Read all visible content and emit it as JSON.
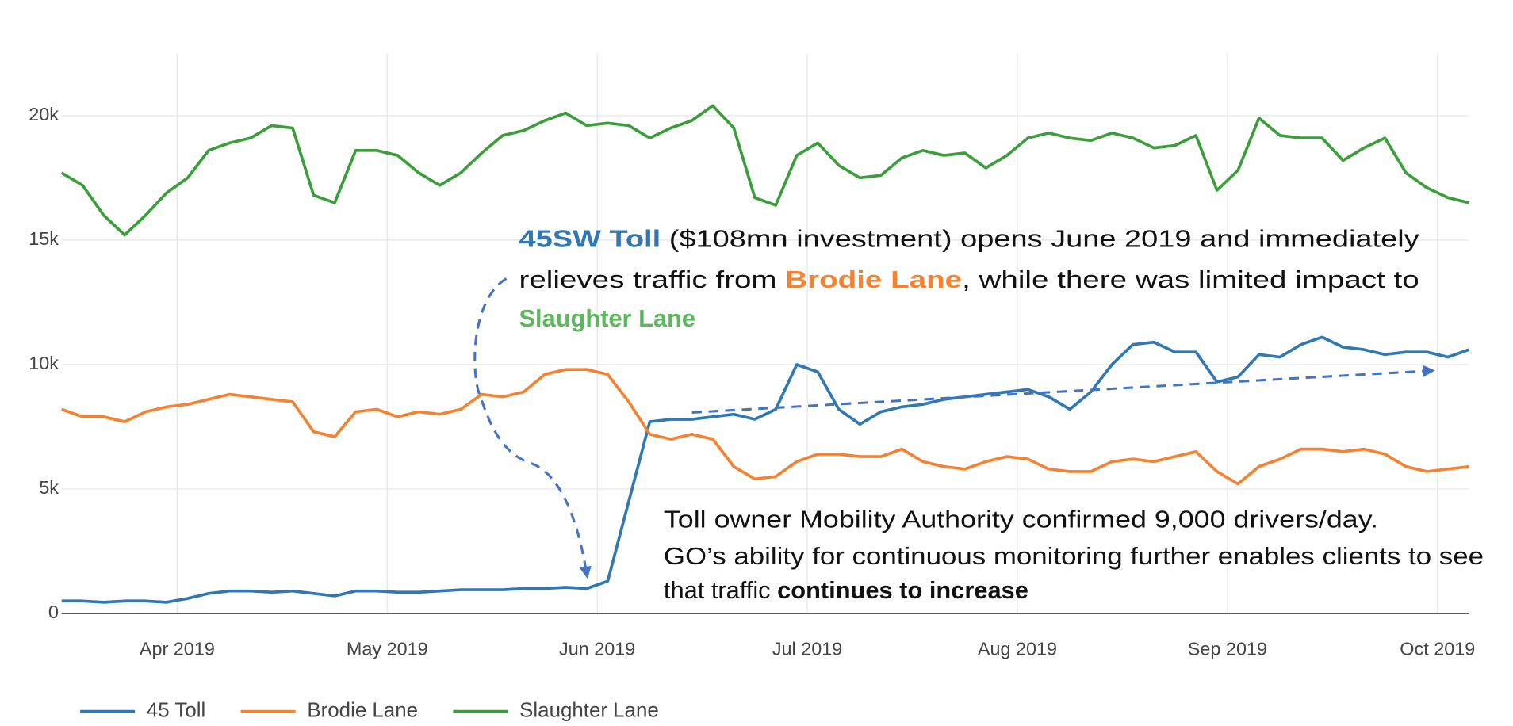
{
  "chart_data": {
    "type": "line",
    "x": [
      3.45,
      3.55,
      3.65,
      3.75,
      3.85,
      3.95,
      4.05,
      4.15,
      4.25,
      4.35,
      4.45,
      4.55,
      4.65,
      4.75,
      4.85,
      4.95,
      5.05,
      5.15,
      5.25,
      5.35,
      5.45,
      5.55,
      5.65,
      5.75,
      5.85,
      5.95,
      6.05,
      6.15,
      6.25,
      6.35,
      6.45,
      6.55,
      6.65,
      6.75,
      6.85,
      6.95,
      7.05,
      7.15,
      7.25,
      7.35,
      7.45,
      7.55,
      7.65,
      7.75,
      7.85,
      7.95,
      8.05,
      8.15,
      8.25,
      8.35,
      8.45,
      8.55,
      8.65,
      8.75,
      8.85,
      8.95,
      9.05,
      9.15,
      9.25,
      9.35,
      9.45,
      9.55,
      9.65,
      9.75,
      9.85,
      9.95,
      10.05,
      10.15
    ],
    "xlim": [
      3.45,
      10.15
    ],
    "xticks": [
      {
        "value": 4,
        "label": "Apr 2019"
      },
      {
        "value": 5,
        "label": "May 2019"
      },
      {
        "value": 6,
        "label": "Jun 2019"
      },
      {
        "value": 7,
        "label": "Jul 2019"
      },
      {
        "value": 8,
        "label": "Aug 2019"
      },
      {
        "value": 9,
        "label": "Sep 2019"
      },
      {
        "value": 10,
        "label": "Oct 2019"
      }
    ],
    "ylim": [
      0,
      22500
    ],
    "yticks": [
      0,
      {
        "value": 5000,
        "label": "5k"
      },
      {
        "value": 10000,
        "label": "10k"
      },
      {
        "value": 15000,
        "label": "15k"
      },
      {
        "value": 20000,
        "label": "20k"
      }
    ],
    "grid": true,
    "legend": "bottom-left",
    "series": [
      {
        "name": "45 Toll",
        "color": "#2f78b4",
        "values": [
          500,
          500,
          450,
          500,
          500,
          450,
          600,
          800,
          900,
          900,
          850,
          900,
          800,
          700,
          900,
          900,
          850,
          850,
          900,
          950,
          950,
          950,
          1000,
          1000,
          1050,
          1000,
          1300,
          4500,
          7700,
          7800,
          7800,
          7900,
          8000,
          7800,
          8200,
          10000,
          9700,
          8200,
          7600,
          8100,
          8300,
          8400,
          8600,
          8700,
          8800,
          8900,
          9000,
          8700,
          8200,
          8900,
          10000,
          10800,
          10900,
          10500,
          10500,
          9300,
          9500,
          10400,
          10300,
          10800,
          11100,
          10700,
          10600,
          10400,
          10500,
          10500,
          10300,
          10600
        ]
      },
      {
        "name": "Brodie Lane",
        "color": "#f58231",
        "values": [
          8200,
          7900,
          7900,
          7700,
          8100,
          8300,
          8400,
          8600,
          8800,
          8700,
          8600,
          8500,
          7300,
          7100,
          8100,
          8200,
          7900,
          8100,
          8000,
          8200,
          8800,
          8700,
          8900,
          9600,
          9800,
          9800,
          9600,
          8500,
          7200,
          7000,
          7200,
          7000,
          5900,
          5400,
          5500,
          6100,
          6400,
          6400,
          6300,
          6300,
          6600,
          6100,
          5900,
          5800,
          6100,
          6300,
          6200,
          5800,
          5700,
          5700,
          6100,
          6200,
          6100,
          6300,
          6500,
          5700,
          5200,
          5900,
          6200,
          6600,
          6600,
          6500,
          6600,
          6400,
          5900,
          5700,
          5800,
          5900
        ]
      },
      {
        "name": "Slaughter Lane",
        "color": "#3a9e3a",
        "values": [
          17700,
          17200,
          16000,
          15200,
          16000,
          16900,
          17500,
          18600,
          18900,
          19100,
          19600,
          19500,
          16800,
          16500,
          18600,
          18600,
          18400,
          17700,
          17200,
          17700,
          18500,
          19200,
          19400,
          19800,
          20100,
          19600,
          19700,
          19600,
          19100,
          19500,
          19800,
          20400,
          19500,
          16700,
          16400,
          18400,
          18900,
          18000,
          17500,
          17600,
          18300,
          18600,
          18400,
          18500,
          17900,
          18400,
          19100,
          19300,
          19100,
          19000,
          19300,
          19100,
          18700,
          18800,
          19200,
          17000,
          17800,
          19900,
          19200,
          19100,
          19100,
          18200,
          18700,
          19100,
          17700,
          17100,
          16700,
          16500
        ]
      }
    ],
    "annotations": [
      {
        "lines": [
          [
            {
              "text": "45SW Toll",
              "bold": true,
              "color": "#2f78b4"
            },
            {
              "text": " ($108mn investment) opens June 2019 and immediately"
            }
          ],
          [
            {
              "text": "relieves traffic from "
            },
            {
              "text": "Brodie Lane",
              "bold": true,
              "color": "#f58231"
            },
            {
              "text": ", while there was limited impact to"
            }
          ],
          [
            {
              "text": "Slaughter Lane",
              "bold": true,
              "color": "#5cb85c"
            }
          ]
        ]
      },
      {
        "lines": [
          [
            {
              "text": "Toll owner Mobility Authority confirmed 9,000 drivers/day."
            }
          ],
          [
            {
              "text": "GO’s ability for continuous monitoring further enables clients to see"
            }
          ],
          [
            {
              "text": "that traffic "
            },
            {
              "text": "continues to increase",
              "bold": true
            }
          ]
        ]
      }
    ]
  }
}
